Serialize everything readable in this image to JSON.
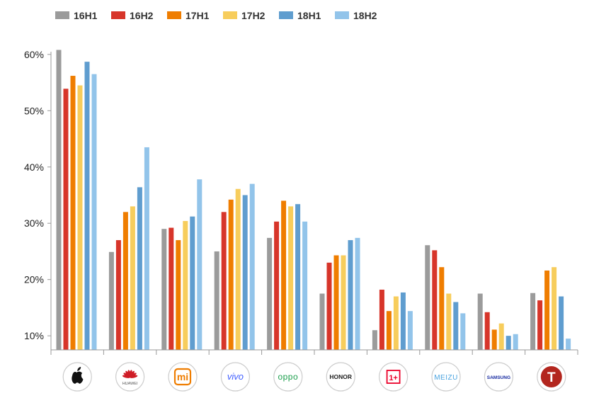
{
  "chart_data": {
    "type": "bar",
    "categories": [
      "Apple",
      "Huawei",
      "Mi",
      "vivo",
      "OPPO",
      "HONOR",
      "OnePlus",
      "MEIZU",
      "Samsung",
      "Smartisan"
    ],
    "series": [
      {
        "name": "16H1",
        "color": "#9b9b9b",
        "values": [
          60.8,
          24.9,
          29.0,
          25.0,
          27.4,
          17.5,
          11.0,
          26.1,
          17.5,
          17.6
        ]
      },
      {
        "name": "16H2",
        "color": "#d7352a",
        "values": [
          53.9,
          27.0,
          29.2,
          32.0,
          30.3,
          23.0,
          18.2,
          25.2,
          14.2,
          16.3
        ]
      },
      {
        "name": "17H1",
        "color": "#ef7d00",
        "values": [
          56.2,
          32.0,
          27.0,
          34.2,
          34.0,
          24.3,
          14.4,
          22.2,
          11.1,
          21.6
        ]
      },
      {
        "name": "17H2",
        "color": "#f7cd5c",
        "values": [
          54.5,
          33.0,
          30.4,
          36.1,
          33.0,
          24.3,
          17.0,
          17.5,
          12.2,
          22.2
        ]
      },
      {
        "name": "18H1",
        "color": "#5f9dcf",
        "values": [
          58.7,
          36.4,
          31.2,
          35.0,
          33.4,
          27.0,
          17.7,
          16.0,
          10.0,
          17.0
        ]
      },
      {
        "name": "18H2",
        "color": "#92c4ea",
        "values": [
          56.5,
          43.5,
          37.8,
          37.0,
          30.3,
          27.4,
          14.4,
          14.0,
          10.3,
          9.5
        ]
      }
    ],
    "ylim": [
      7.5,
      63
    ],
    "yticks": [
      10,
      20,
      30,
      40,
      50,
      60
    ],
    "ytick_labels": [
      "10%",
      "20%",
      "30%",
      "40%",
      "50%",
      "60%"
    ],
    "legend_position": "top-left",
    "grid": false
  },
  "brand_logos": [
    {
      "icon": "apple-logo-icon",
      "text": ""
    },
    {
      "icon": "huawei-logo-icon",
      "text": "HUAWEI"
    },
    {
      "icon": "mi-logo-icon",
      "text": "mi"
    },
    {
      "icon": "vivo-logo-icon",
      "text": "vivo"
    },
    {
      "icon": "oppo-logo-icon",
      "text": "oppo"
    },
    {
      "icon": "honor-logo-icon",
      "text": "HONOR"
    },
    {
      "icon": "oneplus-logo-icon",
      "text": "1+"
    },
    {
      "icon": "meizu-logo-icon",
      "text": "MEIZU"
    },
    {
      "icon": "samsung-logo-icon",
      "text": "SAMSUNG"
    },
    {
      "icon": "smartisan-logo-icon",
      "text": "T"
    }
  ],
  "colors": {
    "axis": "#999999",
    "logo_border": "#cccccc",
    "huawei_red": "#cf1d26",
    "mi_orange": "#ef7d00",
    "vivo_blue": "#415fff",
    "oppo_green": "#1a9e4b",
    "meizu_blue": "#4aa3df",
    "samsung_blue": "#1428a0",
    "smartisan_red": "#b3261e",
    "oneplus_red": "#eb0028"
  }
}
